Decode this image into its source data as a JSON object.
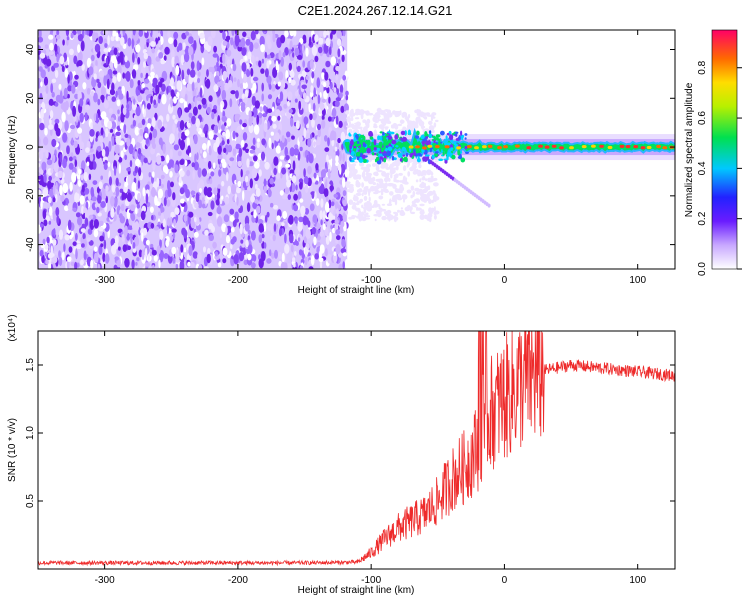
{
  "title": "C2E1.2024.267.12.14.G21",
  "colors": {
    "spectrogram_cloud": "#7b2cf0",
    "snr_line": "#ee2b2b"
  },
  "chart_data": [
    {
      "type": "heatmap",
      "xlabel": "Height of straight line (km)",
      "ylabel": "Frequency (Hz)",
      "xlim": [
        -350,
        128
      ],
      "ylim": [
        -50,
        48
      ],
      "xticks": [
        -300,
        -200,
        -100,
        0,
        100
      ],
      "yticks": [
        -40,
        -20,
        0,
        20,
        40
      ],
      "colorbar": {
        "label": "Normalized spectral amplitude",
        "range": [
          0,
          0.95
        ],
        "ticks": [
          "0.0",
          "0.2",
          "0.4",
          "0.6",
          "0.8"
        ]
      },
      "grid": false,
      "regions": [
        {
          "description": "broadband noise",
          "x_range": [
            -350,
            -118
          ],
          "y_range": [
            -50,
            48
          ],
          "amplitude": [
            0.0,
            0.3
          ]
        },
        {
          "description": "signal tone",
          "x_range": [
            -118,
            128
          ],
          "center_frequency": 0,
          "amplitude": [
            0.3,
            0.95
          ]
        }
      ]
    },
    {
      "type": "line",
      "xlabel": "Height of straight line (km)",
      "ylabel": "SNR (10 * v/v)",
      "y_multiplier": "(x10⁴)",
      "xlim": [
        -350,
        128
      ],
      "ylim": [
        0,
        17500
      ],
      "xticks": [
        -300,
        -200,
        -100,
        0,
        100
      ],
      "yticks": [
        "0.5",
        "1.0",
        "1.5"
      ],
      "grid": false,
      "series": [
        {
          "x": [
            -350,
            -300,
            -250,
            -200,
            -150,
            -110,
            -100,
            -90,
            -80,
            -70,
            -60,
            -50,
            -40,
            -30,
            -20,
            -15,
            -10,
            0,
            10,
            20,
            30,
            40,
            50,
            60,
            70,
            80,
            90,
            100,
            110,
            120,
            128
          ],
          "y": [
            450,
            450,
            450,
            450,
            450,
            500,
            1200,
            2200,
            3000,
            3500,
            4000,
            5000,
            6500,
            7500,
            9000,
            11000,
            11500,
            12500,
            13500,
            14200,
            14600,
            14800,
            15000,
            14900,
            14800,
            14700,
            14600,
            14500,
            14400,
            14300,
            14200
          ]
        }
      ]
    }
  ]
}
